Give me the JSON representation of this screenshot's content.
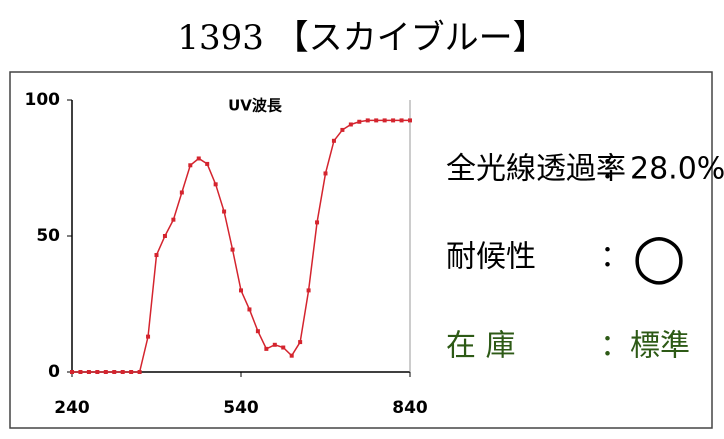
{
  "header": {
    "title": "1393 【スカイブルー】"
  },
  "chart_data": {
    "type": "line",
    "title": "UV波長",
    "x": [
      240,
      255,
      270,
      285,
      300,
      315,
      330,
      345,
      360,
      375,
      390,
      405,
      420,
      435,
      450,
      465,
      480,
      495,
      510,
      525,
      540,
      555,
      570,
      585,
      600,
      615,
      630,
      645,
      660,
      675,
      690,
      705,
      720,
      735,
      750,
      765,
      780,
      795,
      810,
      825,
      840
    ],
    "series": [
      {
        "color": "#d4242e",
        "values": [
          0,
          0,
          0,
          0,
          0,
          0,
          0,
          0,
          0,
          13,
          43,
          50,
          56,
          66,
          76,
          78.5,
          76.5,
          69,
          59,
          45,
          30,
          23,
          15,
          8.5,
          10,
          9,
          6,
          11,
          30,
          55,
          73,
          85,
          89,
          91,
          92,
          92.5,
          92.5,
          92.5,
          92.5,
          92.5,
          92.5
        ]
      }
    ],
    "xlim": [
      240,
      840
    ],
    "xticks": [
      240,
      540,
      840
    ],
    "ylim": [
      0,
      100
    ],
    "yticks": [
      0,
      50,
      100
    ]
  },
  "info": {
    "transmittance_label": "全光線透過率",
    "transmittance_value": "：28.0%",
    "weather_label": "耐候性",
    "weather_sep": "：",
    "weather_value": "○",
    "stock_label": "在 庫",
    "stock_value": "：標準"
  }
}
